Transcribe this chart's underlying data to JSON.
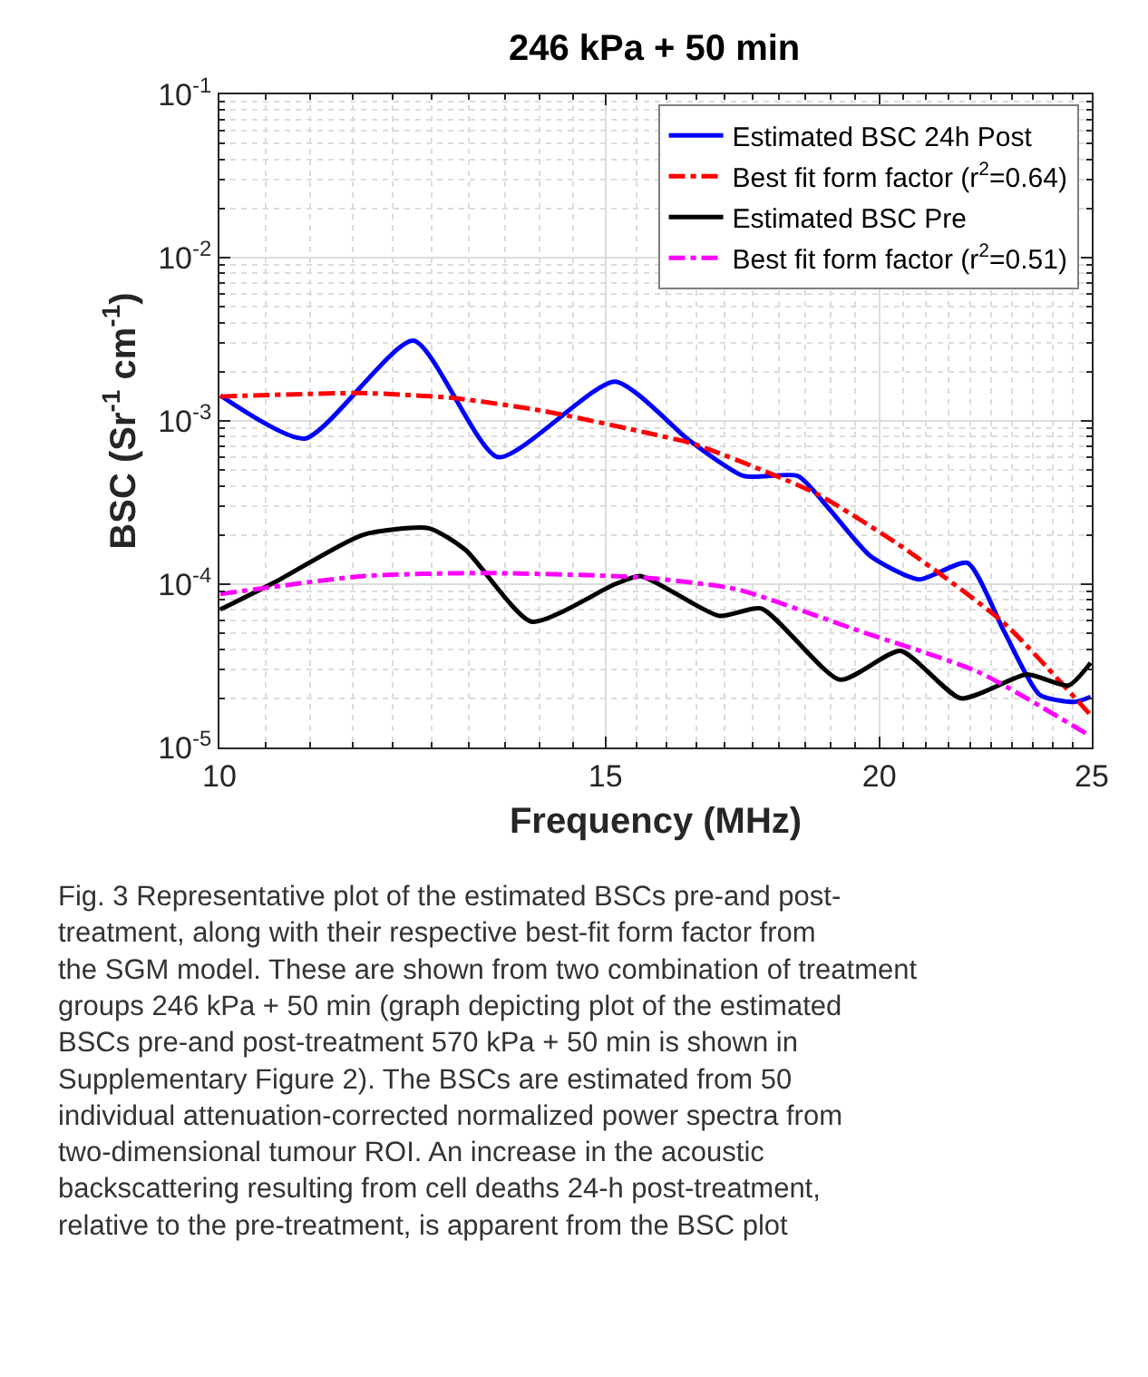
{
  "chart_data": {
    "type": "line",
    "title": "246 kPa + 50 min",
    "xlabel": "Frequency (MHz)",
    "ylabel": "BSC (Sr$^{-1}$ cm$^{-1}$)",
    "log": "xy",
    "xlim": [
      10,
      25
    ],
    "xticks": [
      10,
      15,
      20,
      25
    ],
    "ylim": [
      1e-05,
      0.1
    ],
    "yticks": [
      {
        "value": 1e-05,
        "label": "10$^{-5}$"
      },
      {
        "value": 0.0001,
        "label": "10$^{-4}$"
      },
      {
        "value": 0.001,
        "label": "10$^{-3}$"
      },
      {
        "value": 0.01,
        "label": "10$^{-2}$"
      },
      {
        "value": 0.1,
        "label": "10$^{-1}$"
      }
    ],
    "grid": true,
    "legend": "top right",
    "marker": "none",
    "series": [
      {
        "name": "Estimated BSC 24h Post",
        "color": "#0000ff",
        "line_style": "solid",
        "x": [
          10.01,
          10.94,
          12.26,
          13.4,
          15.15,
          16.38,
          17.34,
          18.36,
          18.95,
          19.82,
          20.85,
          21.94,
          22.79,
          23.67,
          24.55,
          24.97
        ],
        "values": [
          0.00143,
          0.00078,
          0.0031,
          0.0006,
          0.00174,
          0.00076,
          0.00046,
          0.00046,
          0.000295,
          0.000148,
          0.000107,
          0.000135,
          5.2e-05,
          2.1e-05,
          1.9e-05,
          2.04e-05
        ]
      },
      {
        "name": "Best fit form factor (r$^{2}$=0.64)",
        "color": "#ff0000",
        "line_style": "dashdot",
        "x": [
          10.01,
          11.62,
          12.79,
          14.06,
          15.76,
          16.47,
          18.71,
          20.58,
          22.79,
          24.97
        ],
        "values": [
          0.00141,
          0.00148,
          0.00138,
          0.00115,
          0.00083,
          0.00072,
          0.00036,
          0.000162,
          5.8e-05,
          1.58e-05
        ]
      },
      {
        "name": "Estimated BSC Pre",
        "color": "#000000",
        "line_style": "solid",
        "x": [
          10.01,
          10.63,
          11.62,
          12.46,
          12.95,
          13.88,
          15.15,
          15.57,
          16.9,
          17.67,
          19.19,
          20.45,
          21.79,
          23.35,
          24.4,
          24.97
        ],
        "values": [
          7e-05,
          0.000105,
          0.0002,
          0.00022,
          0.000162,
          5.9e-05,
          0.0001,
          0.000112,
          6.4e-05,
          7.1e-05,
          2.6e-05,
          3.9e-05,
          2e-05,
          2.8e-05,
          2.4e-05,
          3.3e-05
        ]
      },
      {
        "name": "Best fit form factor (r$^{2}$=0.51)",
        "color": "#ff00ff",
        "line_style": "dashdot",
        "x": [
          10.01,
          11.62,
          13.2,
          15.57,
          17.22,
          19.56,
          22.19,
          24.97
        ],
        "values": [
          8.7e-05,
          0.000112,
          0.000117,
          0.00011,
          9.3e-05,
          5.2e-05,
          2.9e-05,
          1.17e-05
        ]
      }
    ],
    "annotations": [
      "Fig. 3 Representative plot of the estimated BSCs pre-and post-treatment, along with their respective best-fit form factor from the SGM model. These are shown from two combination of treatment groups 246 kPa + 50 min (graph depicting plot of the estimated BSCs pre-and post-treatment 570 kPa + 50 min is shown in Supplementary Figure 2). The BSCs are estimated from 50 individual attenuation-corrected normalized power spectra from two-dimensional tumour ROI. An increase in the acoustic backscattering resulting from cell deaths 24-h post-treatment, relative to the pre-treatment, is apparent from the BSC plot"
    ]
  }
}
